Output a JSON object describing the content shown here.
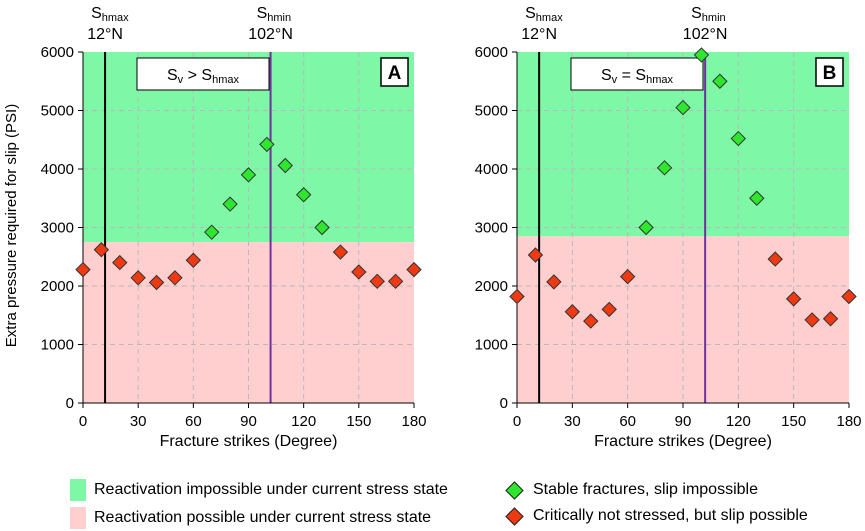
{
  "chart_data": [
    {
      "type": "scatter",
      "panel_label": "A",
      "condition": {
        "lhs": "S",
        "lhs_sub": "v",
        "op": " > ",
        "rhs": "S",
        "rhs_sub": "hmax"
      },
      "xlabel": "Fracture strikes (Degree)",
      "ylabel": "Extra pressure required for slip (PSI)",
      "xlim": [
        0,
        180
      ],
      "ylim": [
        0,
        6000
      ],
      "xticks": [
        0,
        30,
        60,
        90,
        120,
        150,
        180
      ],
      "yticks": [
        0,
        1000,
        2000,
        3000,
        4000,
        5000,
        6000
      ],
      "grid": true,
      "threshold": 2750,
      "x": [
        0,
        10,
        20,
        30,
        40,
        50,
        60,
        70,
        80,
        90,
        100,
        110,
        120,
        130,
        140,
        150,
        160,
        170,
        180
      ],
      "y": [
        2280,
        2620,
        2400,
        2140,
        2060,
        2140,
        2440,
        2920,
        3400,
        3900,
        4420,
        4060,
        3560,
        3000,
        2580,
        2240,
        2080,
        2080,
        2280
      ],
      "stress_lines": [
        {
          "name": "S",
          "sub": "hmax",
          "angle_label": "12°N",
          "x": 12,
          "color": "#000000"
        },
        {
          "name": "S",
          "sub": "hmin",
          "angle_label": "102°N",
          "x": 102,
          "color": "#7030a0"
        }
      ]
    },
    {
      "type": "scatter",
      "panel_label": "B",
      "condition": {
        "lhs": "S",
        "lhs_sub": "v",
        "op": " = ",
        "rhs": "S",
        "rhs_sub": "hmax"
      },
      "xlabel": "Fracture strikes (Degree)",
      "ylabel": "",
      "xlim": [
        0,
        180
      ],
      "ylim": [
        0,
        6000
      ],
      "xticks": [
        0,
        30,
        60,
        90,
        120,
        150,
        180
      ],
      "yticks": [
        0,
        1000,
        2000,
        3000,
        4000,
        5000,
        6000
      ],
      "grid": true,
      "threshold": 2850,
      "x": [
        0,
        10,
        20,
        30,
        40,
        50,
        60,
        70,
        80,
        90,
        100,
        110,
        120,
        130,
        140,
        150,
        160,
        170,
        180
      ],
      "y": [
        1820,
        2530,
        2070,
        1560,
        1400,
        1600,
        2160,
        3000,
        4020,
        5050,
        5950,
        5500,
        4520,
        3500,
        2460,
        1780,
        1420,
        1440,
        1820
      ],
      "stress_lines": [
        {
          "name": "S",
          "sub": "hmax",
          "angle_label": "12°N",
          "x": 12,
          "color": "#000000"
        },
        {
          "name": "S",
          "sub": "hmin",
          "angle_label": "102°N",
          "x": 102,
          "color": "#7030a0"
        }
      ]
    }
  ],
  "colors": {
    "impossible_zone": "#7ef7a6",
    "possible_zone": "#ffcfcf",
    "stable_marker": "#2ee62e",
    "critical_marker": "#ee3a12",
    "hmin_line": "#7030a0"
  },
  "legend": {
    "zone_impossible": "Reactivation impossible under current stress state",
    "zone_possible": "Reactivation possible under current stress state",
    "stable": "Stable fractures, slip impossible",
    "critical": "Critically not stressed, but slip possible"
  }
}
